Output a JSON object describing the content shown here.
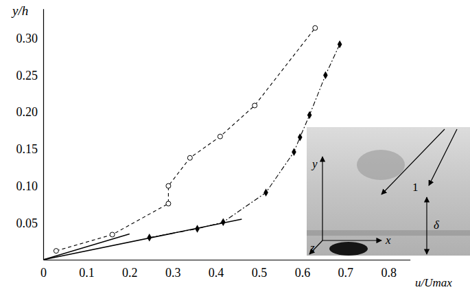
{
  "chart_data": {
    "type": "line",
    "y_label": "y/h",
    "x_label": "u/Umax",
    "xlim": [
      0,
      0.85
    ],
    "xticks": [
      0,
      0.1,
      0.2,
      0.3,
      0.4,
      0.5,
      0.6,
      0.7,
      0.8
    ],
    "ylim": [
      0,
      0.34
    ],
    "yticks": [
      0.05,
      {
        "value": 0.1,
        "label": "0.10"
      },
      0.15,
      {
        "value": 0.2,
        "label": "0.20"
      },
      0.25,
      {
        "value": 0.3,
        "label": "0.30"
      }
    ],
    "grid": false,
    "series": [
      {
        "color": "#000000",
        "marker": "circle",
        "line_style": "dashed",
        "x": [
          0.03,
          0.16,
          0.29,
          0.29,
          0.34,
          0.41,
          0.49,
          0.63
        ],
        "values": [
          0.012,
          0.034,
          0.076,
          0.1,
          0.138,
          0.167,
          0.209,
          0.314
        ]
      },
      {
        "color": "#000000",
        "marker": "diamond",
        "line_style": "dashdot",
        "x": [
          0.246,
          0.357,
          0.417,
          0.516,
          0.581,
          0.595,
          0.617,
          0.654,
          0.687
        ],
        "values": [
          0.03,
          0.042,
          0.051,
          0.091,
          0.146,
          0.166,
          0.196,
          0.25,
          0.292
        ]
      },
      {
        "color": "#000000",
        "marker": "none",
        "line_style": "solid",
        "x": [
          0,
          0.2
        ],
        "values": [
          0,
          0.035
        ]
      },
      {
        "color": "#000000",
        "marker": "none",
        "line_style": "solid",
        "x": [
          0,
          0.46
        ],
        "values": [
          0,
          0.055
        ]
      }
    ],
    "annotations": [
      {
        "text": "y"
      },
      {
        "text": "x"
      },
      {
        "text": "z"
      },
      {
        "text": "1"
      },
      {
        "text": "δ"
      }
    ]
  }
}
